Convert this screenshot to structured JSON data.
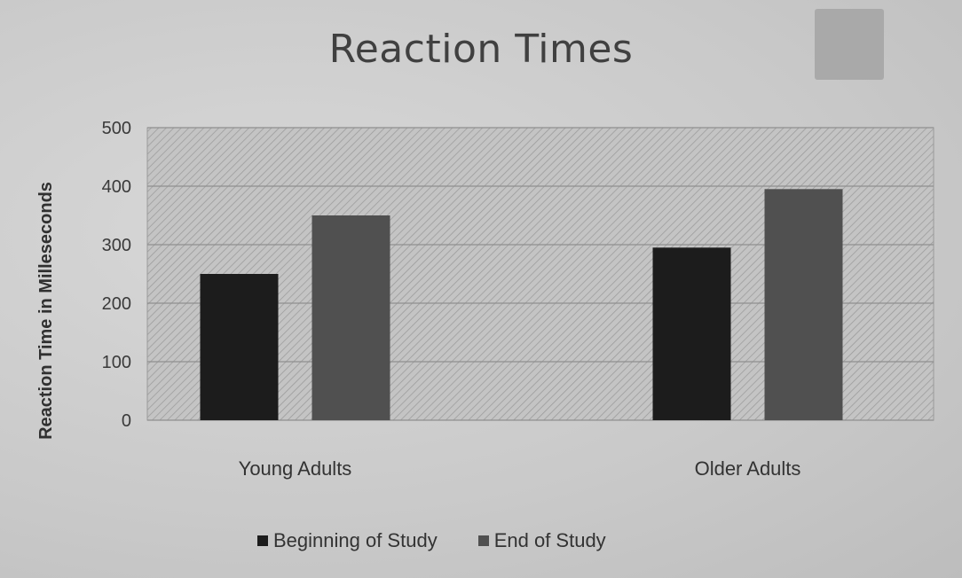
{
  "chart_data": {
    "type": "bar",
    "title": "Reaction Times",
    "xlabel": "",
    "ylabel": "Reaction Time in Milleseconds",
    "categories": [
      "Young Adults",
      "Older Adults"
    ],
    "series": [
      {
        "name": "Beginning of Study",
        "values": [
          250,
          295
        ],
        "color": "#1c1c1c"
      },
      {
        "name": "End of Study",
        "values": [
          350,
          395
        ],
        "color": "#505050"
      }
    ],
    "ylim": [
      0,
      500
    ],
    "yticks": [
      0,
      100,
      200,
      300,
      400,
      500
    ],
    "grid": true,
    "legend_position": "bottom"
  }
}
